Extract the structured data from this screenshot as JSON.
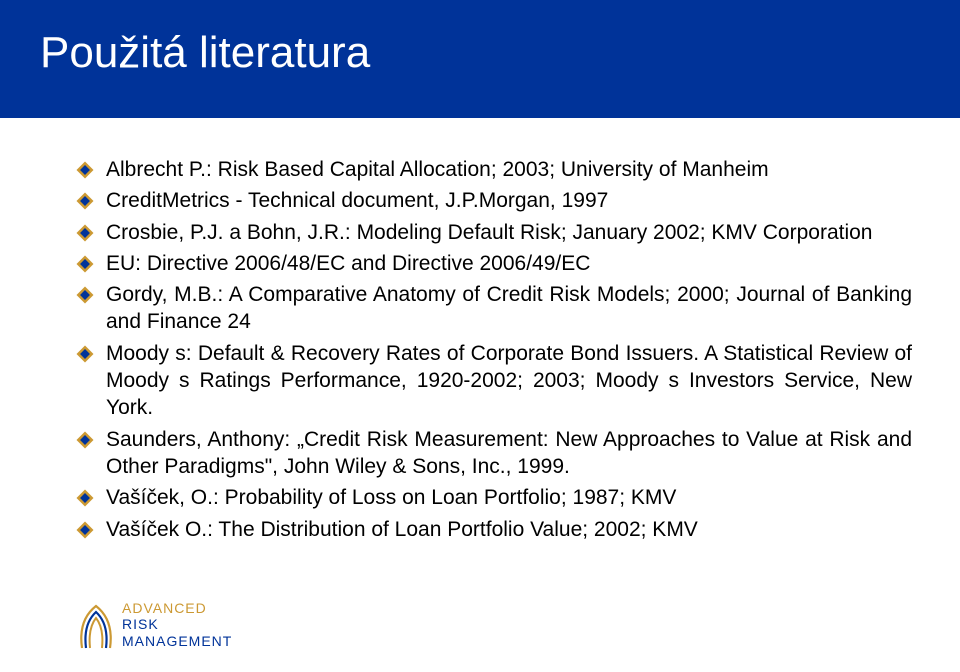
{
  "slide": {
    "title": "Použitá literatura",
    "background_color": "#ffffff",
    "header_color": "#003399",
    "title_color": "#ffffff",
    "title_fontsize": 44,
    "body_fontsize": 21,
    "body_color": "#000000"
  },
  "bullets": {
    "style": {
      "fill_outer": "#cc9933",
      "fill_inner": "#003399",
      "size": 18
    },
    "items": [
      "Albrecht P.: Risk Based Capital Allocation; 2003; University of Manheim",
      "CreditMetrics - Technical document, J.P.Morgan, 1997",
      "Crosbie, P.J. a Bohn, J.R.: Modeling Default Risk; January 2002; KMV Corporation",
      "EU: Directive 2006/48/EC and Directive 2006/49/EC",
      "Gordy, M.B.: A Comparative Anatomy of Credit Risk Models; 2000; Journal of Banking and Finance 24",
      "Moody s: Default & Recovery Rates of Corporate Bond Issuers. A Statistical Review of Moody s Ratings Performance, 1920-2002; 2003; Moody s Investors Service, New York.",
      "Saunders, Anthony: „Credit Risk Measurement: New Approaches to Value at Risk and Other Paradigms\", John Wiley & Sons, Inc., 1999.",
      "Vašíček, O.: Probability of Loss on Loan Portfolio; 1987; KMV",
      "Vašíček O.: The Distribution of Loan Portfolio Value; 2002; KMV"
    ]
  },
  "logo": {
    "line1": "ADVANCED",
    "line2": "RISK",
    "line3": "MANAGEMENT",
    "color_top": "#cc9933",
    "color_bottom": "#003399"
  }
}
